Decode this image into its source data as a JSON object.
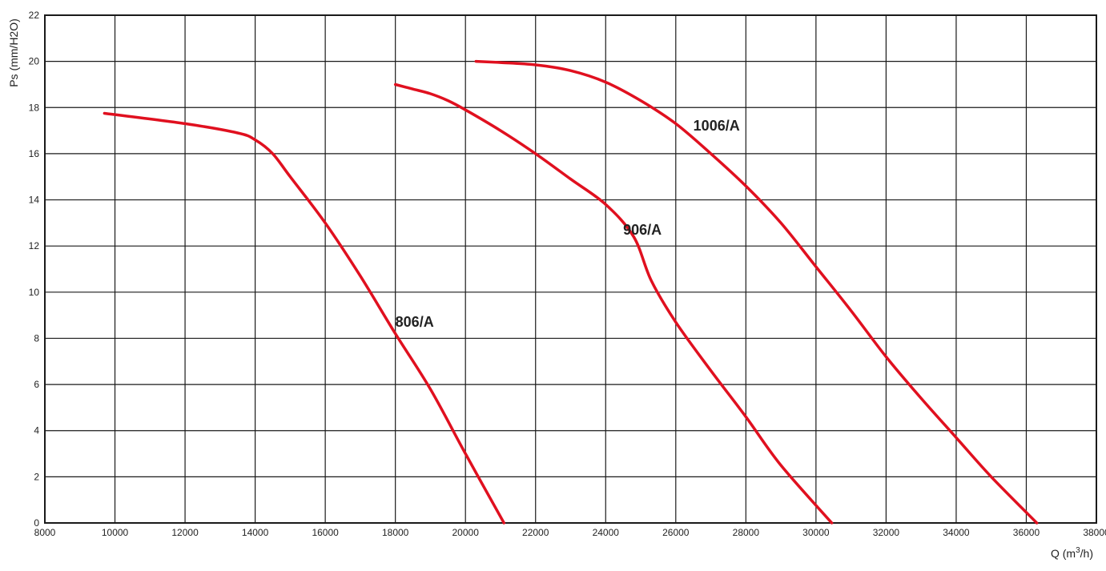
{
  "chart_data": {
    "type": "line",
    "title": "",
    "xlabel": "Q (m3/h)",
    "xlabel_main": "Q (m",
    "xlabel_sup": "3",
    "xlabel_end": "/h)",
    "ylabel": "Ps (mm/H2O)",
    "xlim": [
      8000,
      38000
    ],
    "ylim": [
      0,
      22
    ],
    "x_ticks": [
      8000,
      10000,
      12000,
      14000,
      16000,
      18000,
      20000,
      22000,
      24000,
      26000,
      28000,
      30000,
      32000,
      34000,
      36000,
      38000
    ],
    "y_ticks": [
      0,
      2,
      4,
      6,
      8,
      10,
      12,
      14,
      16,
      18,
      20,
      22
    ],
    "grid": true,
    "line_color": "#e0101f",
    "series": [
      {
        "name": "806/A",
        "label_at": [
          18000,
          8.5
        ],
        "points": [
          [
            9700,
            17.75
          ],
          [
            12000,
            17.3
          ],
          [
            13500,
            16.9
          ],
          [
            14000,
            16.6
          ],
          [
            14500,
            16.0
          ],
          [
            15000,
            15.0
          ],
          [
            16000,
            13.0
          ],
          [
            17000,
            10.7
          ],
          [
            18000,
            8.2
          ],
          [
            19000,
            5.8
          ],
          [
            20000,
            3.0
          ],
          [
            21100,
            0
          ]
        ]
      },
      {
        "name": "906/A",
        "label_at": [
          24500,
          12.5
        ],
        "points": [
          [
            18000,
            19.0
          ],
          [
            18500,
            18.8
          ],
          [
            19000,
            18.6
          ],
          [
            19500,
            18.3
          ],
          [
            20000,
            17.9
          ],
          [
            21000,
            17.0
          ],
          [
            22000,
            16.0
          ],
          [
            23000,
            14.9
          ],
          [
            24000,
            13.8
          ],
          [
            24800,
            12.4
          ],
          [
            25300,
            10.5
          ],
          [
            26000,
            8.7
          ],
          [
            27000,
            6.6
          ],
          [
            28000,
            4.6
          ],
          [
            29000,
            2.5
          ],
          [
            30450,
            0
          ]
        ]
      },
      {
        "name": "1006/A",
        "label_at": [
          26500,
          17.0
        ],
        "points": [
          [
            20300,
            20.0
          ],
          [
            21000,
            19.95
          ],
          [
            22000,
            19.85
          ],
          [
            23000,
            19.6
          ],
          [
            24000,
            19.1
          ],
          [
            25000,
            18.3
          ],
          [
            26000,
            17.3
          ],
          [
            27000,
            16.0
          ],
          [
            28000,
            14.6
          ],
          [
            29000,
            13.0
          ],
          [
            30000,
            11.1
          ],
          [
            31000,
            9.2
          ],
          [
            32000,
            7.2
          ],
          [
            33000,
            5.4
          ],
          [
            34000,
            3.7
          ],
          [
            35000,
            2.0
          ],
          [
            36300,
            0
          ]
        ]
      }
    ]
  }
}
